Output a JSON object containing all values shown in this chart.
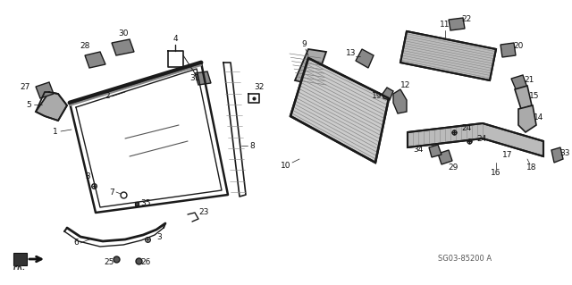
{
  "bg_color": "#ffffff",
  "diagram_color": "#1a1a1a",
  "label_color": "#111111",
  "watermark": "SG03-85200 A",
  "figsize": [
    6.4,
    3.19
  ],
  "dpi": 100
}
